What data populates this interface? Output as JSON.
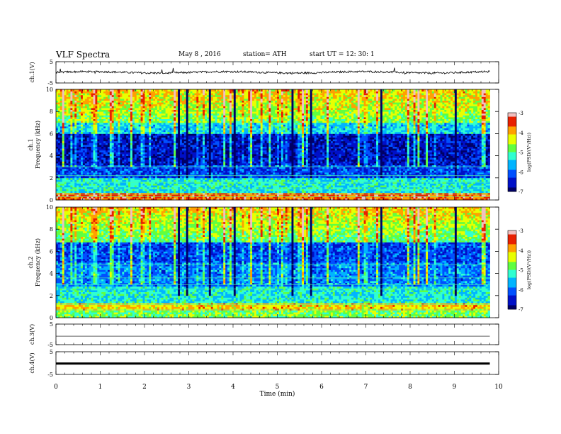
{
  "header": {
    "title": "VLF  Spectra",
    "date": "May 8  , 2016",
    "station": "station= ATH",
    "start_ut": "start  UT  =    12: 30: 1"
  },
  "chart_data": [
    {
      "type": "line",
      "name": "ch1-waveform",
      "ylabel": "ch.1(V)",
      "ylim": [
        -5,
        5
      ],
      "yticks": [
        "5",
        "-5"
      ],
      "baseline": 0
    },
    {
      "type": "heatmap",
      "name": "ch1-spectrogram",
      "ylabel_lines": [
        "ch.1",
        "Frequency  (kHz)"
      ],
      "ylim": [
        0,
        10
      ],
      "yticks": [
        "0",
        "2",
        "4",
        "6",
        "8",
        "10"
      ],
      "colorbar": {
        "label": "log(PSD/(V²/Hz))",
        "range": [
          -7,
          -3
        ],
        "ticks": [
          "-3",
          "-4",
          "-5",
          "-6",
          "-7"
        ]
      }
    },
    {
      "type": "heatmap",
      "name": "ch2-spectrogram",
      "ylabel_lines": [
        "ch.2",
        "Frequency  (kHz)"
      ],
      "ylim": [
        0,
        10
      ],
      "yticks": [
        "0",
        "2",
        "4",
        "6",
        "8",
        "10"
      ],
      "colorbar": {
        "label": "log(PSD/(V²/Hz))",
        "range": [
          -7,
          -3
        ],
        "ticks": [
          "-3",
          "-4",
          "-5",
          "-6",
          "-7"
        ]
      }
    },
    {
      "type": "line",
      "name": "ch3-waveform",
      "ylabel": "ch.3(V)",
      "ylim": [
        -5,
        5
      ],
      "yticks": [
        "5",
        "-5"
      ],
      "baseline": -0.9
    },
    {
      "type": "line",
      "name": "ch4-waveform",
      "ylabel": "ch.4(V)",
      "ylim": [
        -5,
        5
      ],
      "yticks": [
        "5",
        "-5"
      ],
      "baseline": -0.2
    }
  ],
  "xaxis": {
    "label": "Time  (min)",
    "range": [
      0,
      10
    ],
    "data_end": 9.8,
    "ticks": [
      "0",
      "1",
      "2",
      "3",
      "4",
      "5",
      "6",
      "7",
      "8",
      "9",
      "10"
    ]
  },
  "colormap": [
    "#000066",
    "#0010c8",
    "#0050ff",
    "#00b4ff",
    "#30ffd0",
    "#60ff40",
    "#e8ff00",
    "#ffa000",
    "#e82000",
    "#f0c0c0"
  ]
}
